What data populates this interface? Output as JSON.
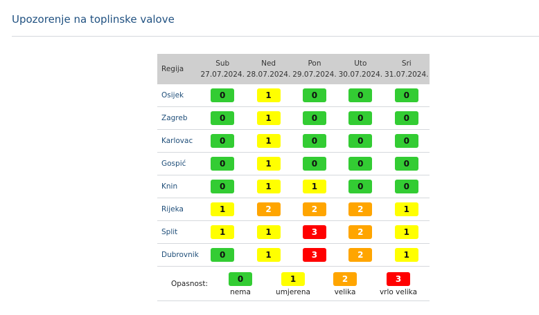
{
  "title": "Upozorenje na toplinske valove",
  "table": {
    "region_header": "Regija",
    "days": [
      {
        "day": "Sub",
        "date": "27.07.2024."
      },
      {
        "day": "Ned",
        "date": "28.07.2024."
      },
      {
        "day": "Pon",
        "date": "29.07.2024."
      },
      {
        "day": "Uto",
        "date": "30.07.2024."
      },
      {
        "day": "Sri",
        "date": "31.07.2024."
      }
    ],
    "rows": [
      {
        "region": "Osijek",
        "levels": [
          0,
          1,
          0,
          0,
          0
        ]
      },
      {
        "region": "Zagreb",
        "levels": [
          0,
          1,
          0,
          0,
          0
        ]
      },
      {
        "region": "Karlovac",
        "levels": [
          0,
          1,
          0,
          0,
          0
        ]
      },
      {
        "region": "Gospić",
        "levels": [
          0,
          1,
          0,
          0,
          0
        ]
      },
      {
        "region": "Knin",
        "levels": [
          0,
          1,
          1,
          0,
          0
        ]
      },
      {
        "region": "Rijeka",
        "levels": [
          1,
          2,
          2,
          2,
          1
        ]
      },
      {
        "region": "Split",
        "levels": [
          1,
          1,
          3,
          2,
          1
        ]
      },
      {
        "region": "Dubrovnik",
        "levels": [
          0,
          1,
          3,
          2,
          1
        ]
      }
    ]
  },
  "legend": {
    "label": "Opasnost:",
    "items": [
      {
        "level": "0",
        "text": "nema"
      },
      {
        "level": "1",
        "text": "umjerena"
      },
      {
        "level": "2",
        "text": "velika"
      },
      {
        "level": "3",
        "text": "vrlo velika"
      }
    ]
  },
  "colors": {
    "0": "#33cc33",
    "1": "#ffff00",
    "2": "#ffa500",
    "3": "#ff0000"
  }
}
